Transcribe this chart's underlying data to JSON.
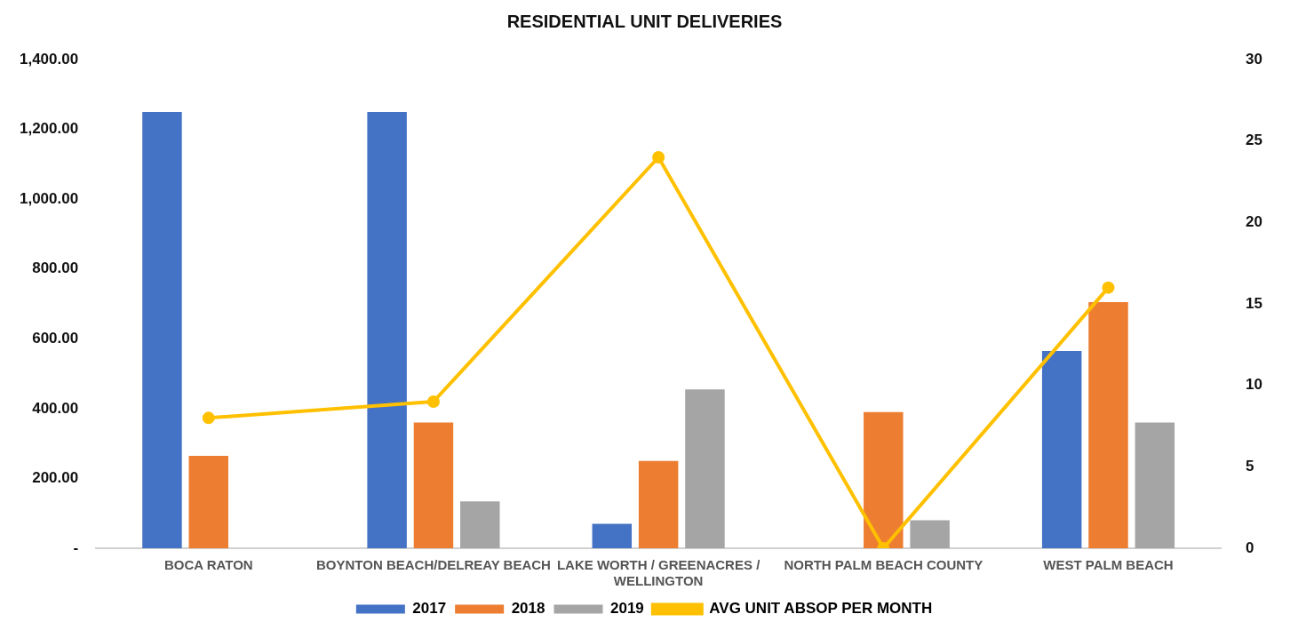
{
  "chart_data": {
    "type": "bar",
    "title": "RESIDENTIAL UNIT DELIVERIES",
    "categories": [
      "BOCA RATON",
      "BOYNTON BEACH/DELREAY BEACH",
      "LAKE WORTH / GREENACRES / WELLINGTON",
      "NORTH PALM BEACH COUNTY",
      "WEST PALM BEACH"
    ],
    "series": [
      {
        "name": "2017",
        "color": "#4472c4",
        "values": [
          1250,
          1250,
          70,
          null,
          565
        ]
      },
      {
        "name": "2018",
        "color": "#ed7d31",
        "values": [
          265,
          360,
          250,
          390,
          705
        ]
      },
      {
        "name": "2019",
        "color": "#a5a5a5",
        "values": [
          null,
          134,
          455,
          80,
          360
        ]
      },
      {
        "name": "AVG UNIT ABSOP PER MONTH",
        "type": "line",
        "axis": "y2",
        "color": "#ffc000",
        "marker": "circle",
        "values": [
          8,
          9,
          24,
          0,
          16
        ]
      }
    ],
    "ylim": [
      0,
      1400
    ],
    "yticks": [
      {
        "value": 0,
        "label": "-"
      },
      {
        "value": 200,
        "label": "200.00"
      },
      {
        "value": 400,
        "label": "400.00"
      },
      {
        "value": 600,
        "label": "600.00"
      },
      {
        "value": 800,
        "label": "800.00"
      },
      {
        "value": 1000,
        "label": "1,000.00"
      },
      {
        "value": 1200,
        "label": "1,200.00"
      },
      {
        "value": 1400,
        "label": "1,400.00"
      }
    ],
    "y2lim": [
      0,
      30
    ],
    "y2ticks": [
      0,
      5,
      10,
      15,
      20,
      25,
      30
    ],
    "grid": false,
    "legend": "bottom"
  }
}
